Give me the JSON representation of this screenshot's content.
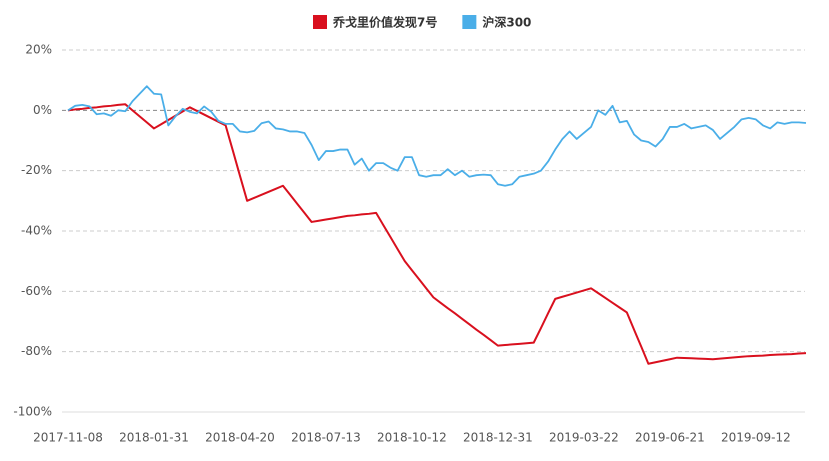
{
  "chart_data": {
    "type": "line",
    "categories": [
      "2017-11-08",
      null,
      null,
      null,
      null,
      null,
      null,
      null,
      null,
      null,
      null,
      null,
      "2018-01-31",
      null,
      null,
      null,
      null,
      null,
      null,
      null,
      null,
      null,
      null,
      null,
      "2018-04-20",
      null,
      null,
      null,
      null,
      null,
      null,
      null,
      null,
      null,
      null,
      null,
      "2018-07-13",
      null,
      null,
      null,
      null,
      null,
      null,
      null,
      null,
      null,
      null,
      null,
      "2018-10-12",
      null,
      null,
      null,
      null,
      null,
      null,
      null,
      null,
      null,
      null,
      null,
      "2018-12-31",
      null,
      null,
      null,
      null,
      null,
      null,
      null,
      null,
      null,
      null,
      null,
      "2019-03-22",
      null,
      null,
      null,
      null,
      null,
      null,
      null,
      null,
      null,
      null,
      null,
      "2019-06-21",
      null,
      null,
      null,
      null,
      null,
      null,
      null,
      null,
      null,
      null,
      null,
      "2019-09-12",
      null,
      null,
      null,
      null,
      null,
      null,
      null
    ],
    "series": [
      {
        "name": "乔戈里价值发现7号",
        "color": "#d9101e",
        "values": [
          0,
          0.3,
          0.5,
          0.8,
          1,
          1.3,
          1.5,
          1.8,
          2,
          0,
          -2,
          -4,
          -6,
          -4.6,
          -3.2,
          -1.8,
          -0.4,
          1,
          -0.2,
          -1.4,
          -2.6,
          -3.8,
          -5,
          -13.3,
          -21.7,
          -30,
          -29,
          -28,
          -27,
          -26,
          -25,
          -28,
          -31,
          -34,
          -37,
          -36.6,
          -36.2,
          -35.8,
          -35.4,
          -35,
          -34.8,
          -34.5,
          -34.3,
          -34,
          -38,
          -42,
          -46,
          -50,
          -53,
          -56,
          -59,
          -62,
          -63.8,
          -65.6,
          -67.3,
          -69.1,
          -70.9,
          -72.7,
          -74.4,
          -76.2,
          -78,
          -77.8,
          -77.6,
          -77.4,
          -77.2,
          -77,
          -72.2,
          -67.3,
          -62.5,
          -61.8,
          -61.1,
          -60.4,
          -59.7,
          -59,
          -60.6,
          -62.2,
          -63.8,
          -65.4,
          -67,
          -72.7,
          -78.3,
          -84,
          -83.5,
          -83,
          -82.5,
          -82,
          -82.1,
          -82.2,
          -82.3,
          -82.4,
          -82.5,
          -82.3,
          -82.1,
          -81.9,
          -81.7,
          -81.5,
          -81.4,
          -81.3,
          -81.1,
          -81,
          -80.9,
          -80.8,
          -80.6,
          -80.5
        ]
      },
      {
        "name": "沪深300",
        "color": "#4aaee8",
        "values": [
          0,
          1.5,
          1.8,
          1.3,
          -1.3,
          -1,
          -1.8,
          0,
          -0.3,
          3,
          5.5,
          8,
          5.5,
          5.3,
          -5,
          -2,
          0.5,
          -0.5,
          -1,
          1.3,
          -0.5,
          -3.5,
          -4.5,
          -4.5,
          -7,
          -7.3,
          -6.8,
          -4.3,
          -3.7,
          -6,
          -6.3,
          -7,
          -7,
          -7.5,
          -11.5,
          -16.5,
          -13.5,
          -13.5,
          -13,
          -13,
          -18,
          -16,
          -20,
          -17.5,
          -17.5,
          -19,
          -20,
          -15.5,
          -15.5,
          -21.5,
          -22,
          -21.5,
          -21.5,
          -19.5,
          -21.5,
          -20,
          -22,
          -21.5,
          -21.3,
          -21.5,
          -24.5,
          -25,
          -24.5,
          -22,
          -21.5,
          -21,
          -20,
          -17,
          -13,
          -9.5,
          -7,
          -9.5,
          -7.5,
          -5.5,
          0,
          -1.5,
          1.5,
          -4,
          -3.5,
          -8,
          -10,
          -10.5,
          -12,
          -9.5,
          -5.5,
          -5.5,
          -4.5,
          -6,
          -5.5,
          -5,
          -6.5,
          -9.5,
          -7.5,
          -5.5,
          -3,
          -2.5,
          -3,
          -5,
          -6,
          -4,
          -4.5,
          -4,
          -4,
          -4.2
        ]
      }
    ],
    "ylim": [
      -100,
      20
    ],
    "yticks": [
      {
        "value": -100,
        "label": "-100%"
      },
      {
        "value": -80,
        "label": "-80%"
      },
      {
        "value": -60,
        "label": "-60%"
      },
      {
        "value": -40,
        "label": "-40%"
      },
      {
        "value": -20,
        "label": "-20%"
      },
      {
        "value": 0,
        "label": "0%"
      },
      {
        "value": 20,
        "label": "20%"
      }
    ],
    "grid": true,
    "legend": "top"
  }
}
